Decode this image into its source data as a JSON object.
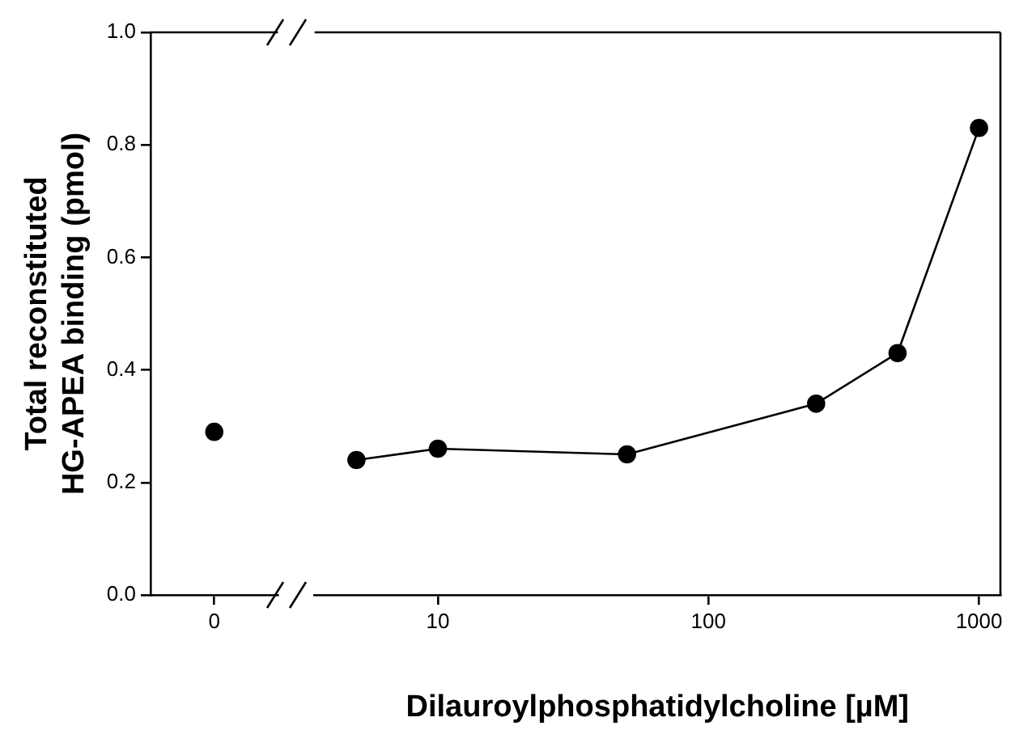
{
  "chart_data": [
    {
      "type": "line",
      "ylabel": "Total reconstituted\nHG-APEA binding (pmol)",
      "categories": [
        "0"
      ],
      "series": [
        {
          "color": "#000000",
          "values": [
            0.29
          ]
        }
      ],
      "ylim": [
        0,
        1
      ],
      "yticks": [
        {
          "value": 0,
          "label": "0.0"
        },
        {
          "value": 0.2,
          "label": "0.2"
        },
        {
          "value": 0.4,
          "label": "0.4"
        },
        {
          "value": 0.6,
          "label": "0.6"
        },
        {
          "value": 0.8,
          "label": "0.8"
        },
        {
          "value": 1,
          "label": "1.0"
        }
      ],
      "grid": false,
      "legend": false,
      "marker": "circle",
      "line_style": "solid"
    },
    {
      "type": "line",
      "xlabel": "Dilauroylphosphatidylcholine [µM]",
      "x": [
        5,
        10,
        50,
        250,
        500,
        1000
      ],
      "series": [
        {
          "color": "#000000",
          "values": [
            0.24,
            0.26,
            0.25,
            0.34,
            0.43,
            0.83
          ]
        }
      ],
      "log": "x",
      "xlim": [
        3.5,
        1200
      ],
      "xticks": [
        10,
        100,
        1000
      ],
      "ylim": [
        0,
        1
      ],
      "tick_labels": "x",
      "grid": false,
      "legend": false,
      "marker": "circle",
      "line_style": "solid"
    }
  ]
}
